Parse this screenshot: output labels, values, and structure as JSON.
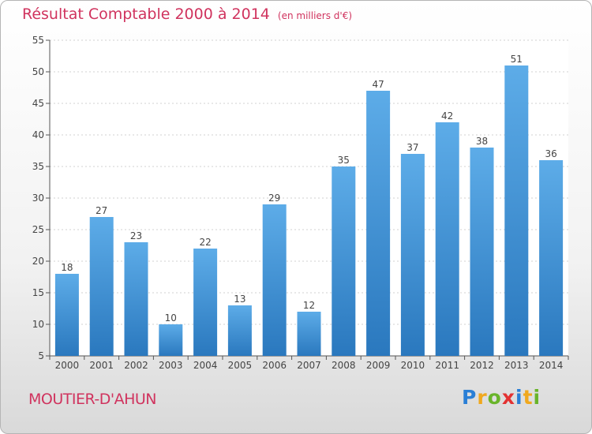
{
  "title": "Résultat Comptable 2000 à 2014",
  "subtitle": "(en milliers d'€)",
  "commune": "MOUTIER-D'AHUN",
  "logo": {
    "letters": [
      {
        "ch": "P",
        "color": "#2a7fd6"
      },
      {
        "ch": "r",
        "color": "#f0a81e"
      },
      {
        "ch": "o",
        "color": "#69b42a"
      },
      {
        "ch": "x",
        "color": "#e33232"
      },
      {
        "ch": "i",
        "color": "#2a7fd6"
      },
      {
        "ch": "t",
        "color": "#f0a81e"
      },
      {
        "ch": "i",
        "color": "#69b42a"
      }
    ]
  },
  "chart_data": {
    "type": "bar",
    "title": "Résultat Comptable 2000 à 2014",
    "subtitle": "(en milliers d'€)",
    "categories": [
      "2000",
      "2001",
      "2002",
      "2003",
      "2004",
      "2005",
      "2006",
      "2007",
      "2008",
      "2009",
      "2010",
      "2011",
      "2012",
      "2013",
      "2014"
    ],
    "values": [
      18,
      27,
      23,
      10,
      22,
      13,
      29,
      12,
      35,
      47,
      37,
      42,
      38,
      51,
      36
    ],
    "ylim": [
      5,
      55
    ],
    "yticks": [
      5,
      10,
      15,
      20,
      25,
      30,
      35,
      40,
      45,
      50,
      55
    ],
    "grid": true,
    "bar_color": "#3d94d9",
    "bar_color_light": "#5dace8",
    "bar_color_dark": "#2a78be"
  }
}
